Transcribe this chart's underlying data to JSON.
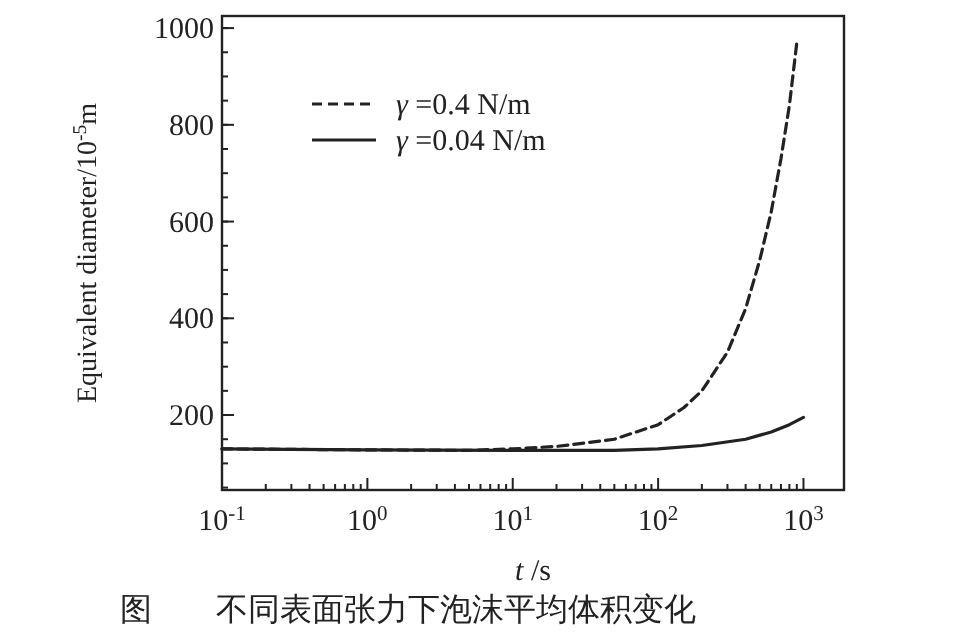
{
  "chart_data": {
    "type": "line",
    "xlabel": "*t* /s",
    "ylabel": "Equivalent diameter/10$^{-5}$m",
    "log": "x",
    "xlim": [
      0.1,
      1900
    ],
    "ylim": [
      45,
      1025
    ],
    "xticks": [
      {
        "value": 0.1,
        "label": "10$^{-1}$"
      },
      {
        "value": 1,
        "label": "10$^{0}$"
      },
      {
        "value": 10,
        "label": "10$^{1}$"
      },
      {
        "value": 100,
        "label": "10$^{2}$"
      },
      {
        "value": 1000,
        "label": "10$^{3}$"
      }
    ],
    "yticks": [
      200,
      400,
      600,
      800,
      1000
    ],
    "legend": "top left",
    "grid": false,
    "series": [
      {
        "name": "*γ* =0.4 N/m",
        "color": "#222222",
        "line_style": "dashed",
        "x": [
          0.1,
          1,
          5,
          10,
          20,
          50,
          100,
          150,
          200,
          300,
          400,
          500,
          600,
          700,
          800,
          900
        ],
        "values": [
          130,
          128,
          127,
          130,
          135,
          150,
          180,
          215,
          250,
          330,
          420,
          520,
          620,
          730,
          840,
          970
        ]
      },
      {
        "name": "*γ* =0.04 N/m",
        "color": "#222222",
        "line_style": "solid",
        "x": [
          0.1,
          1,
          10,
          50,
          100,
          200,
          400,
          600,
          800,
          1000
        ],
        "values": [
          130,
          128,
          127,
          127,
          130,
          137,
          150,
          165,
          180,
          195
        ]
      }
    ],
    "annotations": [
      "图　　不同表面张力下泡沫平均体积变化"
    ]
  }
}
